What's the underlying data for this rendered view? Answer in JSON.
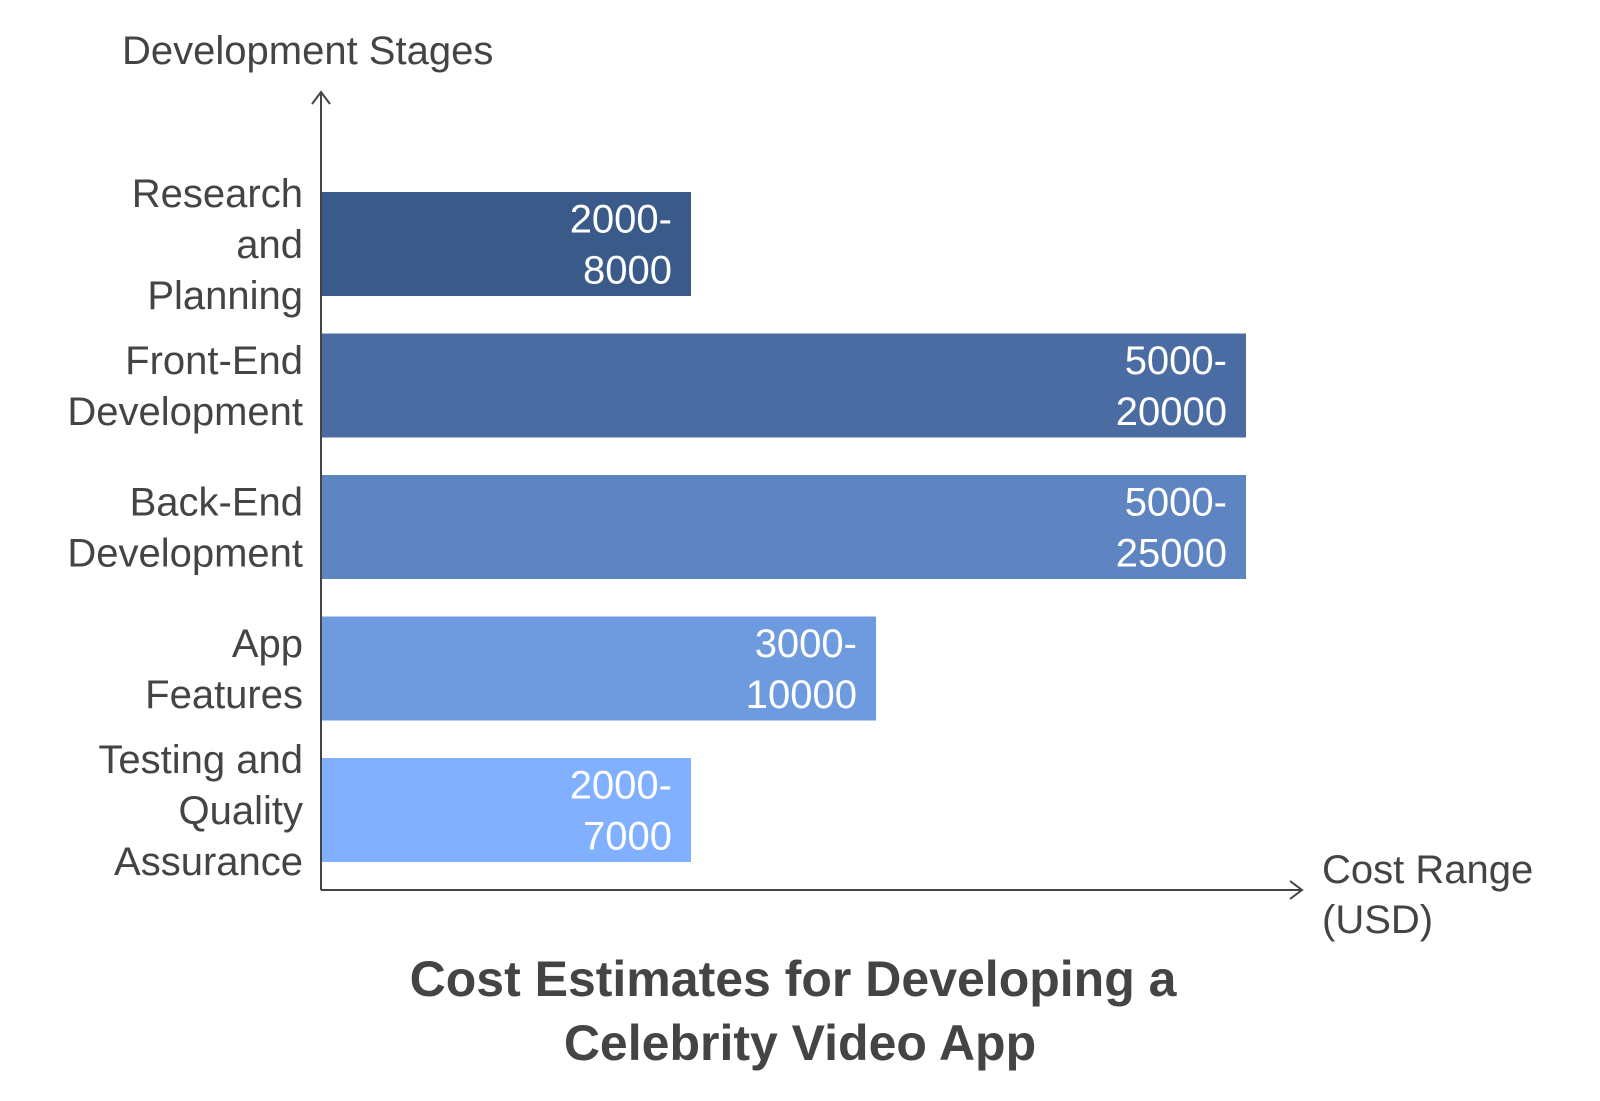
{
  "chart_data": {
    "type": "bar",
    "orientation": "horizontal",
    "title": "Cost Estimates for Developing a Celebrity Video App",
    "title_lines": [
      "Cost Estimates for Developing a",
      "Celebrity Video App"
    ],
    "ylabel": "Development Stages",
    "xlabel": "Cost Range (USD)",
    "xlabel_lines": [
      "Cost Range",
      "(USD)"
    ],
    "grid": false,
    "legend": "none",
    "categories": [
      "Research and Planning",
      "Front-End Development",
      "Back-End Development",
      "App Features",
      "Testing and Quality Assurance"
    ],
    "category_lines": [
      [
        "Research",
        "and",
        "Planning"
      ],
      [
        "Front-End",
        "Development"
      ],
      [
        "Back-End",
        "Development"
      ],
      [
        "App",
        "Features"
      ],
      [
        "Testing and",
        "Quality",
        "Assurance"
      ]
    ],
    "ranges": [
      [
        2000,
        8000
      ],
      [
        5000,
        20000
      ],
      [
        5000,
        25000
      ],
      [
        3000,
        10000
      ],
      [
        2000,
        7000
      ]
    ],
    "value_labels": [
      [
        "2000-",
        "8000"
      ],
      [
        "5000-",
        "20000"
      ],
      [
        "5000-",
        "25000"
      ],
      [
        "3000-",
        "10000"
      ],
      [
        "2000-",
        "7000"
      ]
    ],
    "relative_lengths": [
      0.4,
      1.0,
      1.0,
      0.6,
      0.4
    ],
    "colors": [
      "#3a5a8a",
      "#4b6ca3",
      "#5e84c2",
      "#6e9be0",
      "#80b0ff"
    ]
  }
}
